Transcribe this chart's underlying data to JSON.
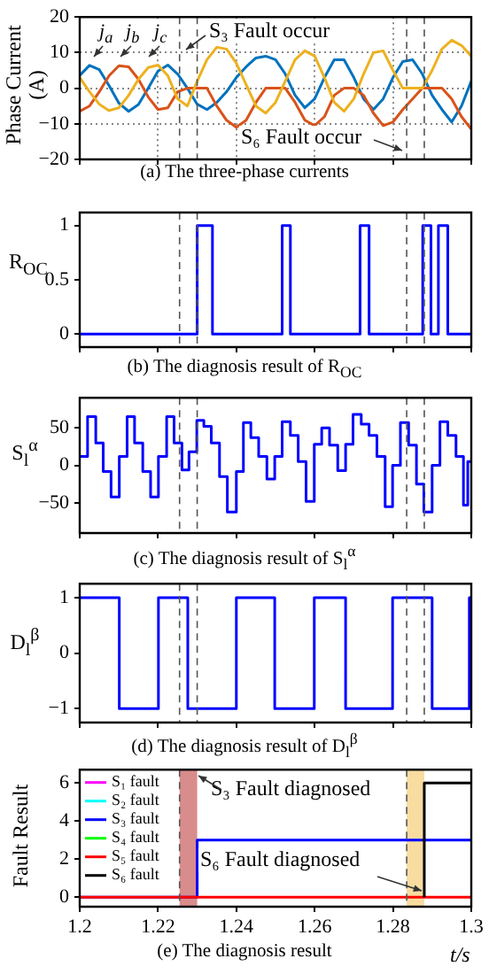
{
  "chart_data": [
    {
      "type": "line",
      "ylabel": "Phase Current (A)",
      "x": [
        1.2,
        1.2025,
        1.205,
        1.2075,
        1.21,
        1.2125,
        1.215,
        1.2175,
        1.22,
        1.2225,
        1.225,
        1.2275,
        1.23,
        1.2325,
        1.235,
        1.2375,
        1.24,
        1.2425,
        1.245,
        1.2475,
        1.25,
        1.2525,
        1.255,
        1.2575,
        1.26,
        1.2625,
        1.265,
        1.2675,
        1.27,
        1.2725,
        1.275,
        1.2775,
        1.28,
        1.2825,
        1.285,
        1.2875,
        1.29,
        1.2925,
        1.295,
        1.2975,
        1.3
      ],
      "series": [
        {
          "name": "j$_{a}$",
          "color": "#0072bd",
          "values": [
            3.6,
            6.4,
            5.2,
            0.7,
            -4.2,
            -6.5,
            -4.6,
            0,
            4.8,
            6.5,
            4,
            0,
            -4.5,
            -6,
            -4,
            -1,
            3,
            6,
            8.5,
            9,
            8,
            4,
            -2,
            -5.5,
            -3,
            3,
            8,
            8,
            3,
            -3,
            -6,
            -3,
            3,
            7.5,
            8,
            4,
            -2,
            -6,
            -9.5,
            -5,
            2
          ]
        },
        {
          "name": "j$_{b}$",
          "color": "#d95319",
          "values": [
            -6.5,
            -5,
            -1,
            3.5,
            6.3,
            6,
            2.5,
            -2.5,
            -6,
            -5.5,
            -1,
            0,
            0,
            0,
            -5,
            -9,
            -11,
            -9,
            -4,
            0,
            0,
            0,
            -4,
            -9,
            -10.5,
            -8,
            -2,
            0,
            0,
            -2,
            -7,
            -10.5,
            -9.5,
            -6,
            -3,
            0,
            0,
            0,
            -3,
            -8,
            -11.5
          ]
        },
        {
          "name": "j$_{c}$",
          "color": "#edb120",
          "values": [
            3,
            -1,
            -4.5,
            -6.3,
            -5.5,
            -2,
            2.5,
            5.8,
            6.5,
            3.5,
            -3,
            -5,
            2,
            8,
            11.5,
            11,
            7,
            1,
            -5,
            -7,
            -4,
            2,
            8,
            10.5,
            9,
            3,
            -4,
            -6.5,
            -3,
            4,
            10,
            10.5,
            5,
            0,
            0,
            0,
            5,
            11,
            13.5,
            12,
            9
          ]
        }
      ],
      "xlim": [
        1.2,
        1.3
      ],
      "xticks": [
        1.2,
        1.22,
        1.24,
        1.26,
        1.28,
        1.3
      ],
      "ylim": [
        -20,
        20
      ],
      "yticks": [
        -20,
        -10,
        0,
        10,
        20
      ],
      "grid": true,
      "tick_labels": "y",
      "ref_lines": [
        {
          "axis": "x",
          "value": 1.2255,
          "color": "#555555",
          "line_style": "dashed"
        },
        {
          "axis": "x",
          "value": 1.23,
          "color": "#555555",
          "line_style": "dashed"
        },
        {
          "axis": "x",
          "value": 1.2835,
          "color": "#555555",
          "line_style": "dashed"
        },
        {
          "axis": "x",
          "value": 1.288,
          "color": "#555555",
          "line_style": "dashed"
        }
      ],
      "annotations": [
        "S₃ Fault occur",
        "S₆ Fault occur",
        "(a) The three-phase currents"
      ]
    },
    {
      "type": "step",
      "ylabel": "R$_{OC}$",
      "series": [
        {
          "color": "#0000ff",
          "x": [
            1.2,
            1.23,
            1.2339,
            1.2517,
            1.2538,
            1.2716,
            1.2739,
            1.2876,
            1.2897,
            1.2916,
            1.294,
            1.3
          ],
          "values": [
            0,
            1,
            0,
            1,
            0,
            1,
            0,
            1,
            0,
            1,
            0,
            0
          ]
        }
      ],
      "xlim": [
        1.2,
        1.3
      ],
      "xticks": [
        1.2,
        1.22,
        1.24,
        1.26,
        1.28,
        1.3
      ],
      "ylim": [
        -0.12,
        1.12
      ],
      "yticks": [
        0,
        0.5,
        1
      ],
      "tick_labels": "y",
      "ref_lines": [
        {
          "axis": "x",
          "value": 1.2255,
          "color": "#555555",
          "line_style": "dashed"
        },
        {
          "axis": "x",
          "value": 1.23,
          "color": "#555555",
          "line_style": "dashed"
        },
        {
          "axis": "x",
          "value": 1.2835,
          "color": "#555555",
          "line_style": "dashed"
        },
        {
          "axis": "x",
          "value": 1.288,
          "color": "#555555",
          "line_style": "dashed"
        }
      ],
      "annotations": [
        "(b) The diagnosis result of R$_{OC}$"
      ]
    },
    {
      "type": "step",
      "ylabel": "S$_{l}$$^{α}$",
      "series": [
        {
          "color": "#0000ff",
          "x": [
            1.2,
            1.202,
            1.2041,
            1.206,
            1.208,
            1.2101,
            1.2121,
            1.214,
            1.2161,
            1.2181,
            1.2201,
            1.2222,
            1.2241,
            1.2261,
            1.2279,
            1.2299,
            1.2317,
            1.2336,
            1.2357,
            1.2377,
            1.24,
            1.2418,
            1.2437,
            1.2457,
            1.2478,
            1.2498,
            1.2517,
            1.2538,
            1.2558,
            1.2578,
            1.2599,
            1.2618,
            1.2638,
            1.2659,
            1.2679,
            1.2698,
            1.2719,
            1.2739,
            1.2759,
            1.278,
            1.2799,
            1.2819,
            1.284,
            1.286,
            1.2879,
            1.29,
            1.292,
            1.294,
            1.2961,
            1.298,
            1.2991,
            1.3
          ],
          "values": [
            12,
            65,
            30,
            -8,
            -42,
            12,
            65,
            30,
            -8,
            -42,
            12,
            65,
            30,
            -6,
            18,
            60,
            52,
            30,
            -15,
            -62,
            -8,
            57,
            37,
            12,
            -18,
            12,
            58,
            40,
            5,
            -48,
            28,
            50,
            27,
            -7,
            28,
            68,
            55,
            40,
            12,
            -55,
            0,
            57,
            27,
            -25,
            -62,
            0,
            58,
            40,
            12,
            -53,
            5,
            5
          ]
        }
      ],
      "xlim": [
        1.2,
        1.3
      ],
      "xticks": [
        1.2,
        1.22,
        1.24,
        1.26,
        1.28,
        1.3
      ],
      "ylim": [
        -90,
        90
      ],
      "yticks": [
        -50,
        0,
        50
      ],
      "tick_labels": "y",
      "ref_lines": [
        {
          "axis": "x",
          "value": 1.2255,
          "color": "#555555",
          "line_style": "dashed"
        },
        {
          "axis": "x",
          "value": 1.23,
          "color": "#555555",
          "line_style": "dashed"
        },
        {
          "axis": "x",
          "value": 1.2835,
          "color": "#555555",
          "line_style": "dashed"
        },
        {
          "axis": "x",
          "value": 1.288,
          "color": "#555555",
          "line_style": "dashed"
        }
      ],
      "annotations": [
        "(c) The diagnosis result of S$_{l}$$^{α}$"
      ]
    },
    {
      "type": "step",
      "ylabel": "D$_{l}$$^{β}$",
      "series": [
        {
          "color": "#0000ff",
          "x": [
            1.2,
            1.2101,
            1.2201,
            1.2276,
            1.24,
            1.2498,
            1.2599,
            1.2679,
            1.2799,
            1.29,
            1.2995,
            1.3
          ],
          "values": [
            1,
            -1,
            1,
            -1,
            1,
            -1,
            1,
            -1,
            1,
            -1,
            1,
            1
          ]
        }
      ],
      "xlim": [
        1.2,
        1.3
      ],
      "xticks": [
        1.2,
        1.22,
        1.24,
        1.26,
        1.28,
        1.3
      ],
      "ylim": [
        -1.25,
        1.25
      ],
      "yticks": [
        -1,
        0,
        1
      ],
      "tick_labels": "y",
      "ref_lines": [
        {
          "axis": "x",
          "value": 1.2255,
          "color": "#555555",
          "line_style": "dashed"
        },
        {
          "axis": "x",
          "value": 1.23,
          "color": "#555555",
          "line_style": "dashed"
        },
        {
          "axis": "x",
          "value": 1.2835,
          "color": "#555555",
          "line_style": "dashed"
        },
        {
          "axis": "x",
          "value": 1.288,
          "color": "#555555",
          "line_style": "dashed"
        }
      ],
      "annotations": [
        "(d) The diagnosis result of D$_{l}$$^{β}$"
      ]
    },
    {
      "type": "step",
      "ylabel": "Fault Result",
      "xlabel": "t/s",
      "series": [
        {
          "name": "S₁ fault",
          "color": "#ff00ff"
        },
        {
          "name": "S₂ fault",
          "color": "#00ffff"
        },
        {
          "name": "S₃ fault",
          "color": "#0000ff",
          "x": [
            1.2,
            1.23,
            1.3
          ],
          "values": [
            0,
            3,
            3
          ]
        },
        {
          "name": "S₄ fault",
          "color": "#00ff00"
        },
        {
          "name": "S₅ fault",
          "color": "#ff0000",
          "x": [
            1.2,
            1.3
          ],
          "values": [
            0,
            0
          ]
        },
        {
          "name": "S₆ fault",
          "color": "#000000",
          "x": [
            1.288,
            1.288,
            1.3
          ],
          "values": [
            0,
            6,
            6
          ]
        }
      ],
      "xlim": [
        1.2,
        1.3
      ],
      "xticks": [
        1.2,
        1.22,
        1.24,
        1.26,
        1.28,
        1.3
      ],
      "ylim": [
        -0.5,
        6.7
      ],
      "yticks": [
        0,
        2,
        4,
        6
      ],
      "legend": "top left",
      "bands": [
        {
          "axis": "x",
          "from": 1.2255,
          "to": 1.23,
          "color": "#d98c8c"
        },
        {
          "axis": "x",
          "from": 1.2835,
          "to": 1.288,
          "color": "#f8dca0"
        }
      ],
      "ref_lines": [
        {
          "axis": "x",
          "value": 1.2255,
          "color": "#555555",
          "line_style": "dashed"
        },
        {
          "axis": "x",
          "value": 1.2835,
          "color": "#555555",
          "line_style": "dashed"
        }
      ],
      "annotations": [
        "S₃ Fault diagnosed",
        "S₆ Fault diagnosed",
        "(e) The diagnosis result"
      ]
    }
  ]
}
